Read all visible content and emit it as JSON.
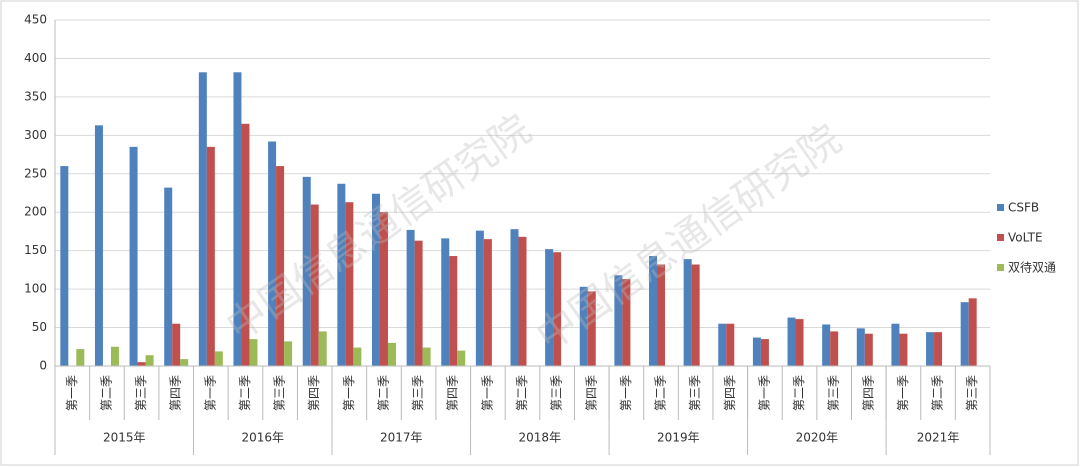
{
  "chart_data": {
    "type": "bar",
    "watermark": "中国信息通信研究院",
    "categories": [
      "第一季",
      "第二季",
      "第三季",
      "第四季",
      "第一季",
      "第二季",
      "第三季",
      "第四季",
      "第一季",
      "第二季",
      "第三季",
      "第四季",
      "第一季",
      "第二季",
      "第三季",
      "第四季",
      "第一季",
      "第二季",
      "第三季",
      "第四季",
      "第一季",
      "第二季",
      "第三季",
      "第四季",
      "第一季",
      "第二季",
      "第三季"
    ],
    "groups": [
      "2015年",
      "2016年",
      "2017年",
      "2018年",
      "2019年",
      "2020年",
      "2021年"
    ],
    "series": [
      {
        "name": "CSFB",
        "color": "#4f81bd",
        "values": [
          260,
          313,
          285,
          232,
          382,
          382,
          292,
          246,
          237,
          224,
          177,
          166,
          176,
          178,
          152,
          103,
          118,
          143,
          139,
          55,
          37,
          63,
          54,
          49,
          55,
          44,
          83
        ]
      },
      {
        "name": "VoLTE",
        "color": "#c0504d",
        "values": [
          null,
          null,
          5,
          55,
          285,
          315,
          260,
          210,
          213,
          200,
          163,
          143,
          165,
          168,
          148,
          97,
          113,
          132,
          132,
          55,
          35,
          61,
          45,
          42,
          42,
          44,
          88
        ]
      },
      {
        "name": "双待双通",
        "color": "#9bbb59",
        "values": [
          22,
          25,
          14,
          9,
          19,
          35,
          32,
          45,
          24,
          30,
          24,
          20,
          null,
          null,
          null,
          null,
          null,
          null,
          null,
          null,
          null,
          null,
          null,
          null,
          null,
          null,
          null
        ]
      }
    ],
    "ylim": [
      0,
      450
    ],
    "yticks": [
      0,
      50,
      100,
      150,
      200,
      250,
      300,
      350,
      400,
      450
    ],
    "grid": true,
    "legend": "right"
  }
}
